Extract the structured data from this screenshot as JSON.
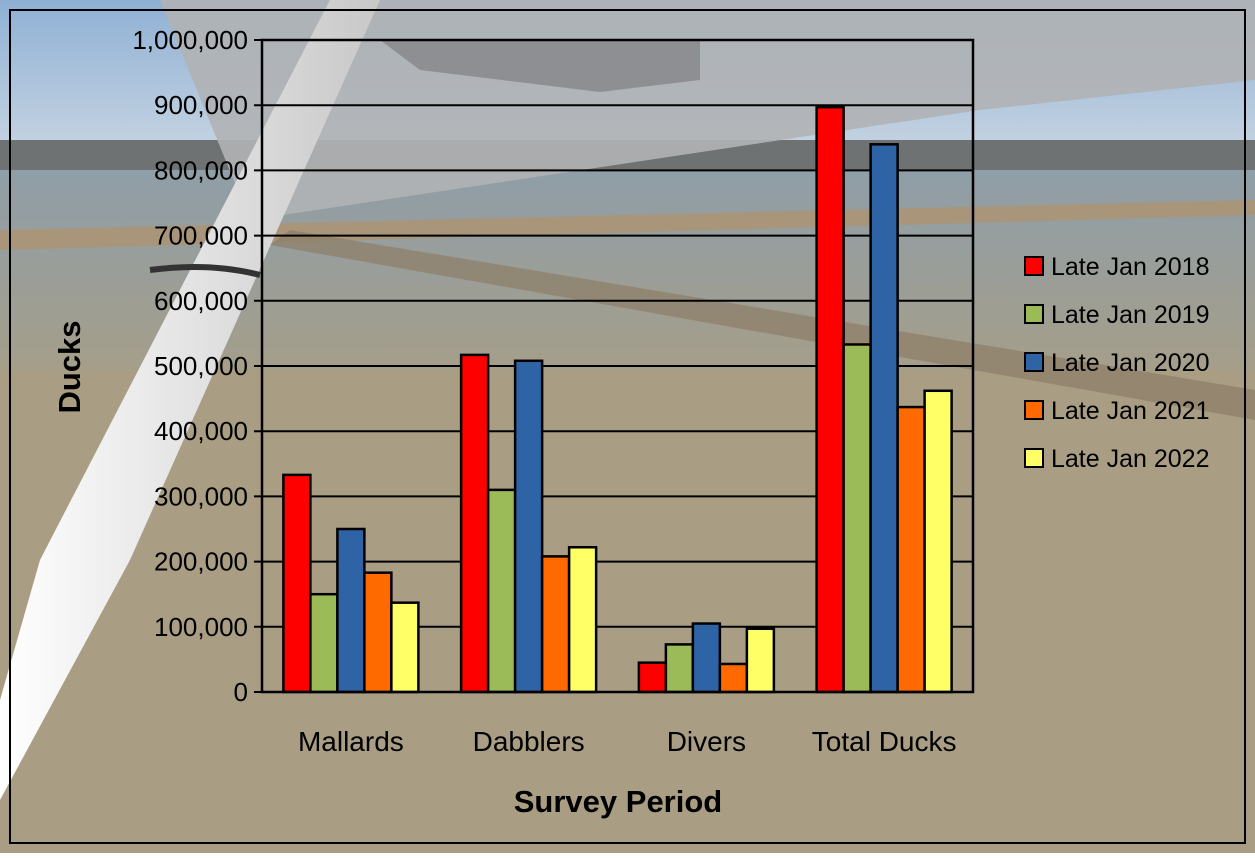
{
  "chart_data": {
    "type": "bar",
    "categories": [
      "Mallards",
      "Dabblers",
      "Divers",
      "Total Ducks"
    ],
    "series": [
      {
        "name": "Late Jan 2018",
        "color": "#ff0000",
        "values": [
          333000,
          517000,
          45000,
          897000
        ]
      },
      {
        "name": "Late Jan 2019",
        "color": "#9bbb59",
        "values": [
          150000,
          310000,
          73000,
          533000
        ]
      },
      {
        "name": "Late Jan 2020",
        "color": "#2e64a6",
        "values": [
          250000,
          508000,
          105000,
          840000
        ]
      },
      {
        "name": "Late Jan 2021",
        "color": "#ff6a00",
        "values": [
          183000,
          208000,
          43000,
          437000
        ]
      },
      {
        "name": "Late Jan 2022",
        "color": "#ffff66",
        "values": [
          137000,
          222000,
          97000,
          462000
        ]
      }
    ],
    "xlabel": "Survey Period",
    "ylabel": "Ducks",
    "ylim": [
      0,
      1000000
    ],
    "yticks": [
      "0",
      "100,000",
      "200,000",
      "300,000",
      "400,000",
      "500,000",
      "600,000",
      "700,000",
      "800,000",
      "900,000",
      "1,000,000"
    ],
    "grid": true,
    "legend_position": "right"
  }
}
